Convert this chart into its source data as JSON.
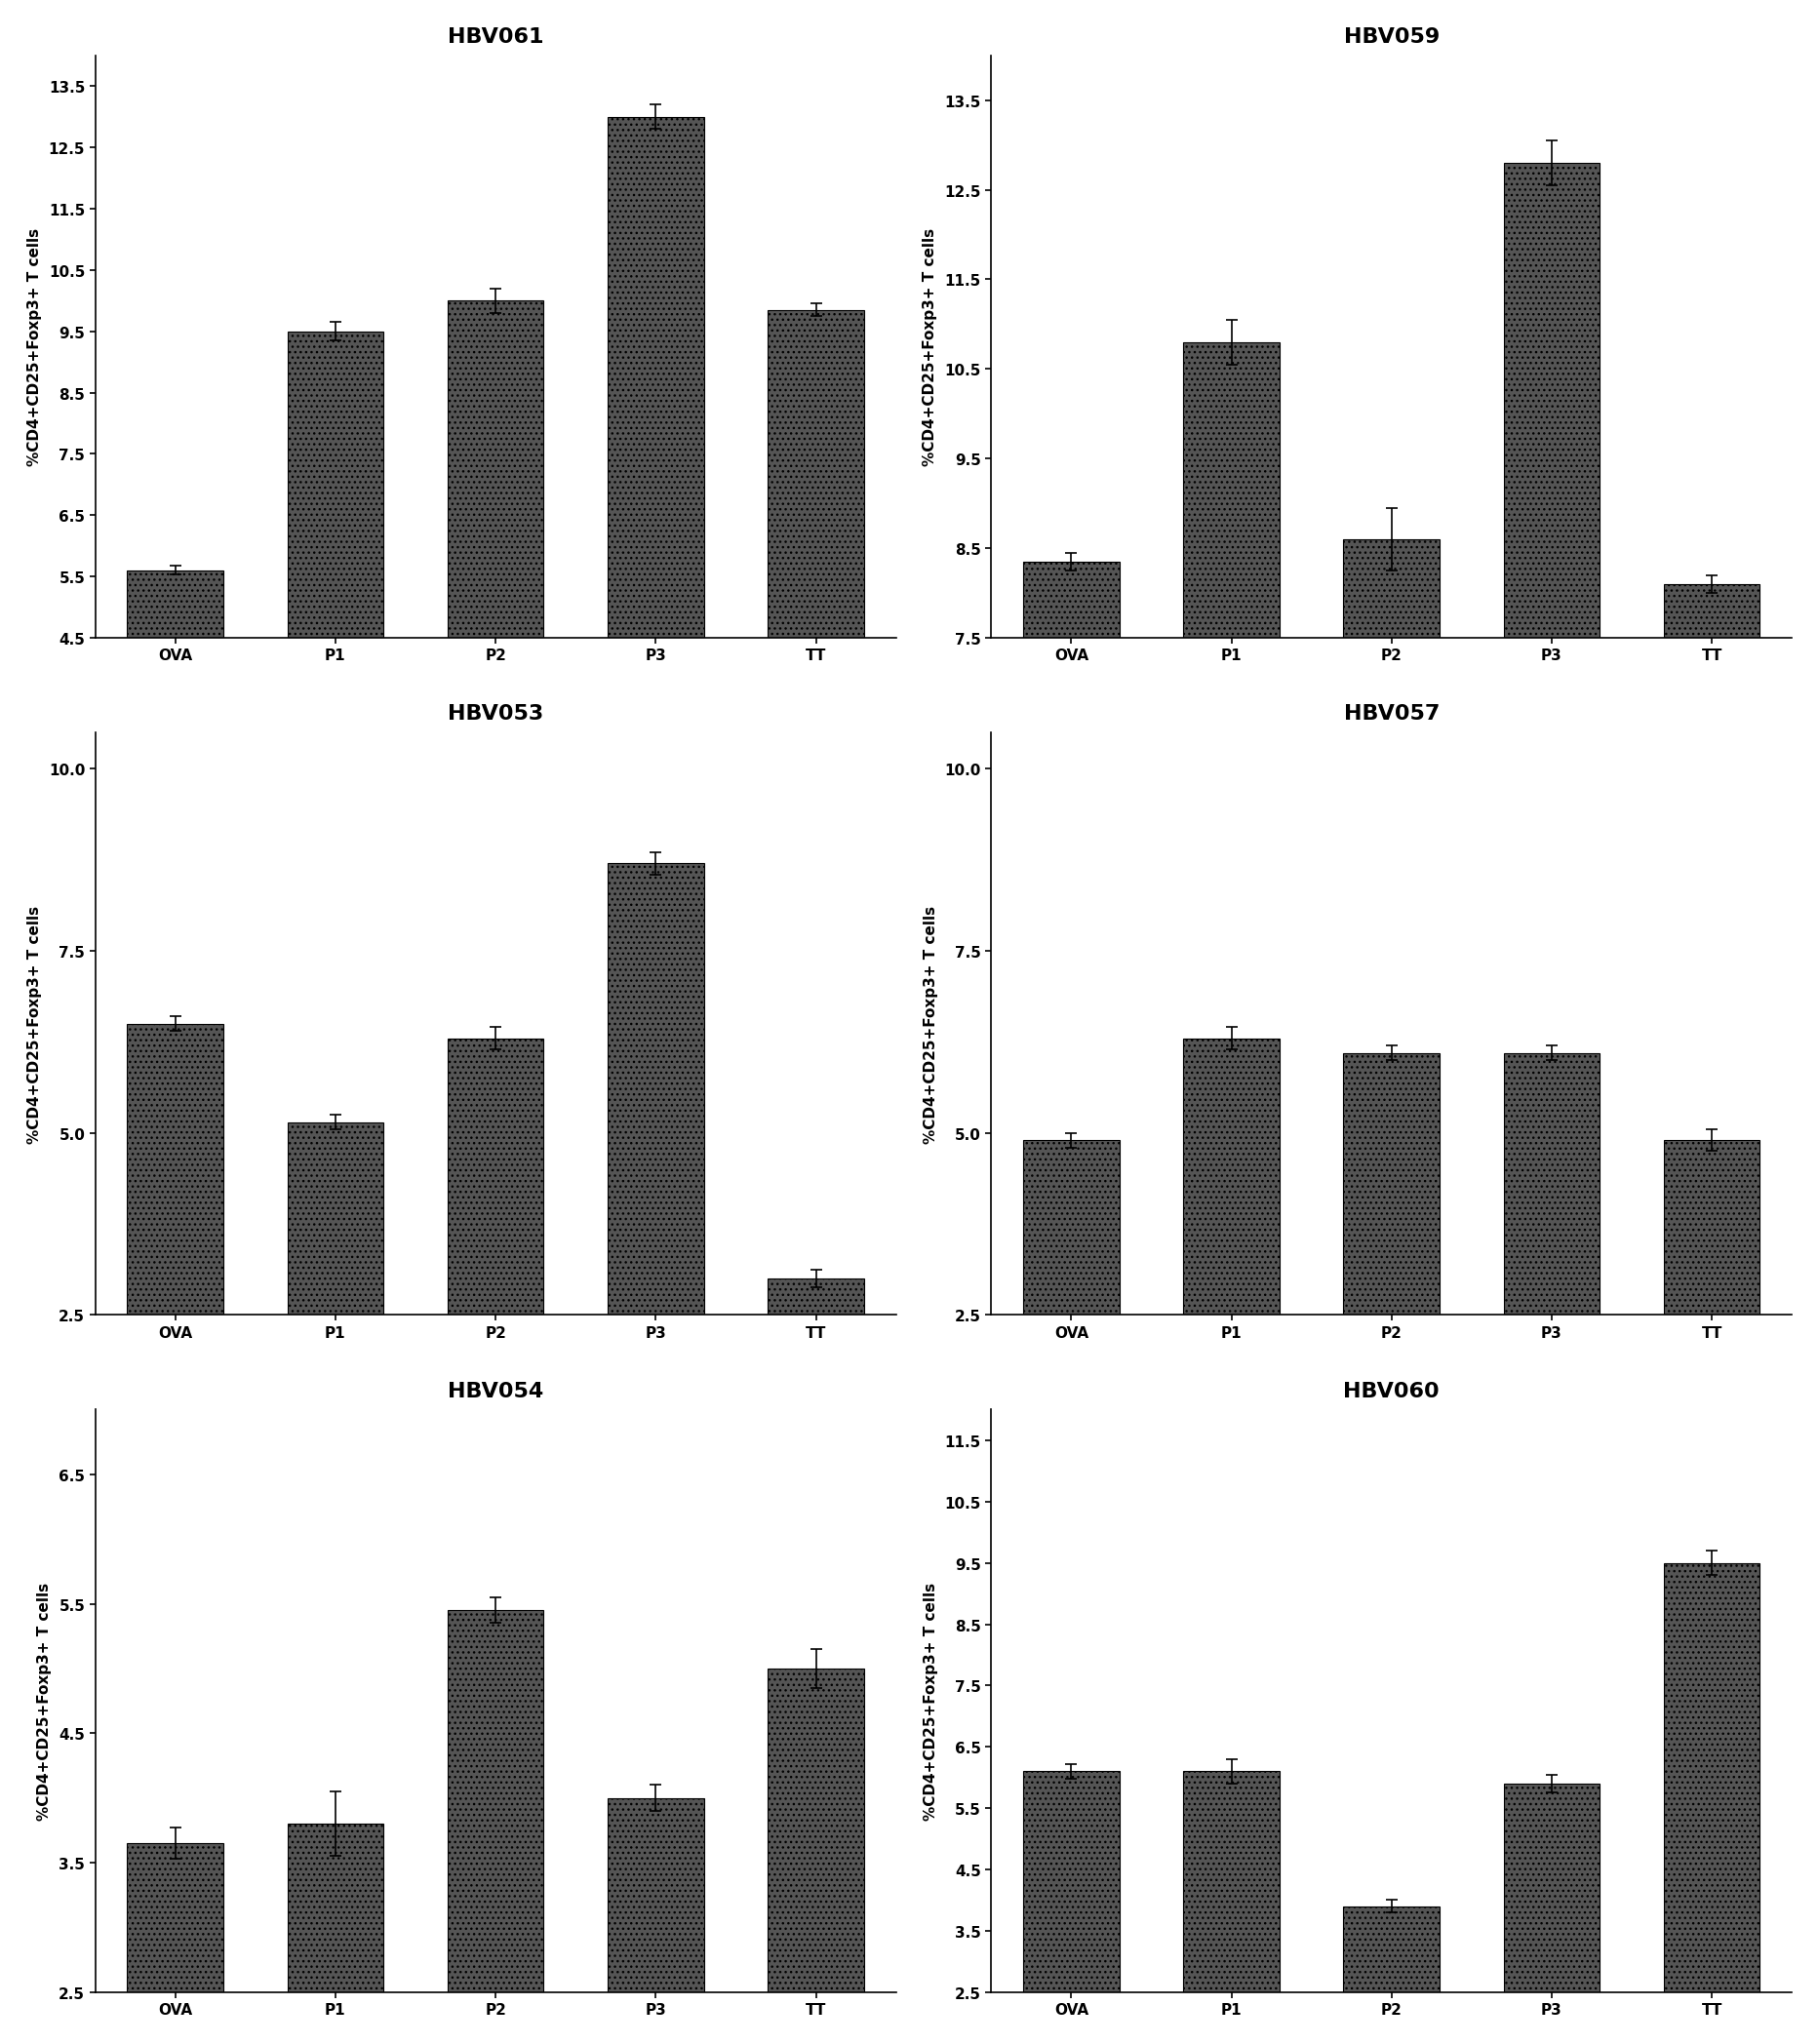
{
  "panels": [
    {
      "title": "HBV061",
      "categories": [
        "OVA",
        "P1",
        "P2",
        "P3",
        "TT"
      ],
      "values": [
        5.6,
        9.5,
        10.0,
        13.0,
        9.85
      ],
      "errors": [
        0.07,
        0.15,
        0.2,
        0.2,
        0.1
      ],
      "ylim": [
        4.5,
        14.0
      ],
      "yticks": [
        4.5,
        5.5,
        6.5,
        7.5,
        8.5,
        9.5,
        10.5,
        11.5,
        12.5,
        13.5
      ],
      "ylabel": "%CD4+CD25+Foxp3+ T cells"
    },
    {
      "title": "HBV059",
      "categories": [
        "OVA",
        "P1",
        "P2",
        "P3",
        "TT"
      ],
      "values": [
        8.35,
        10.8,
        8.6,
        12.8,
        8.1
      ],
      "errors": [
        0.1,
        0.25,
        0.35,
        0.25,
        0.1
      ],
      "ylim": [
        7.5,
        14.0
      ],
      "yticks": [
        7.5,
        8.5,
        9.5,
        10.5,
        11.5,
        12.5,
        13.5
      ],
      "ylabel": "%CD4+CD25+Foxp3+ T cells"
    },
    {
      "title": "HBV053",
      "categories": [
        "OVA",
        "P1",
        "P2",
        "P3",
        "TT"
      ],
      "values": [
        6.5,
        5.15,
        6.3,
        8.7,
        3.0
      ],
      "errors": [
        0.1,
        0.1,
        0.15,
        0.15,
        0.12
      ],
      "ylim": [
        2.5,
        10.5
      ],
      "yticks": [
        2.5,
        5.0,
        7.5,
        10.0
      ],
      "ylabel": "%CD4+CD25+Foxp3+ T cells"
    },
    {
      "title": "HBV057",
      "categories": [
        "OVA",
        "P1",
        "P2",
        "P3",
        "TT"
      ],
      "values": [
        4.9,
        6.3,
        6.1,
        6.1,
        4.9
      ],
      "errors": [
        0.1,
        0.15,
        0.1,
        0.1,
        0.15
      ],
      "ylim": [
        2.5,
        10.5
      ],
      "yticks": [
        2.5,
        5.0,
        7.5,
        10.0
      ],
      "ylabel": "%CD4+CD25+Foxp3+ T cells"
    },
    {
      "title": "HBV054",
      "categories": [
        "OVA",
        "P1",
        "P2",
        "P3",
        "TT"
      ],
      "values": [
        3.65,
        3.8,
        5.45,
        4.0,
        5.0
      ],
      "errors": [
        0.12,
        0.25,
        0.1,
        0.1,
        0.15
      ],
      "ylim": [
        2.5,
        7.0
      ],
      "yticks": [
        2.5,
        3.5,
        4.5,
        5.5,
        6.5
      ],
      "ylabel": "%CD4+CD25+Foxp3+ T cells"
    },
    {
      "title": "HBV060",
      "categories": [
        "OVA",
        "P1",
        "P2",
        "P3",
        "TT"
      ],
      "values": [
        6.1,
        6.1,
        3.9,
        5.9,
        9.5
      ],
      "errors": [
        0.12,
        0.2,
        0.1,
        0.15,
        0.2
      ],
      "ylim": [
        2.5,
        12.0
      ],
      "yticks": [
        2.5,
        3.5,
        4.5,
        5.5,
        6.5,
        7.5,
        8.5,
        9.5,
        10.5,
        11.5
      ],
      "ylabel": "%CD4+CD25+Foxp3+ T cells"
    }
  ],
  "bar_color": "#555555",
  "bar_hatch": "...",
  "bar_width": 0.6,
  "title_fontsize": 16,
  "label_fontsize": 11,
  "tick_fontsize": 11,
  "background_color": "#ffffff"
}
